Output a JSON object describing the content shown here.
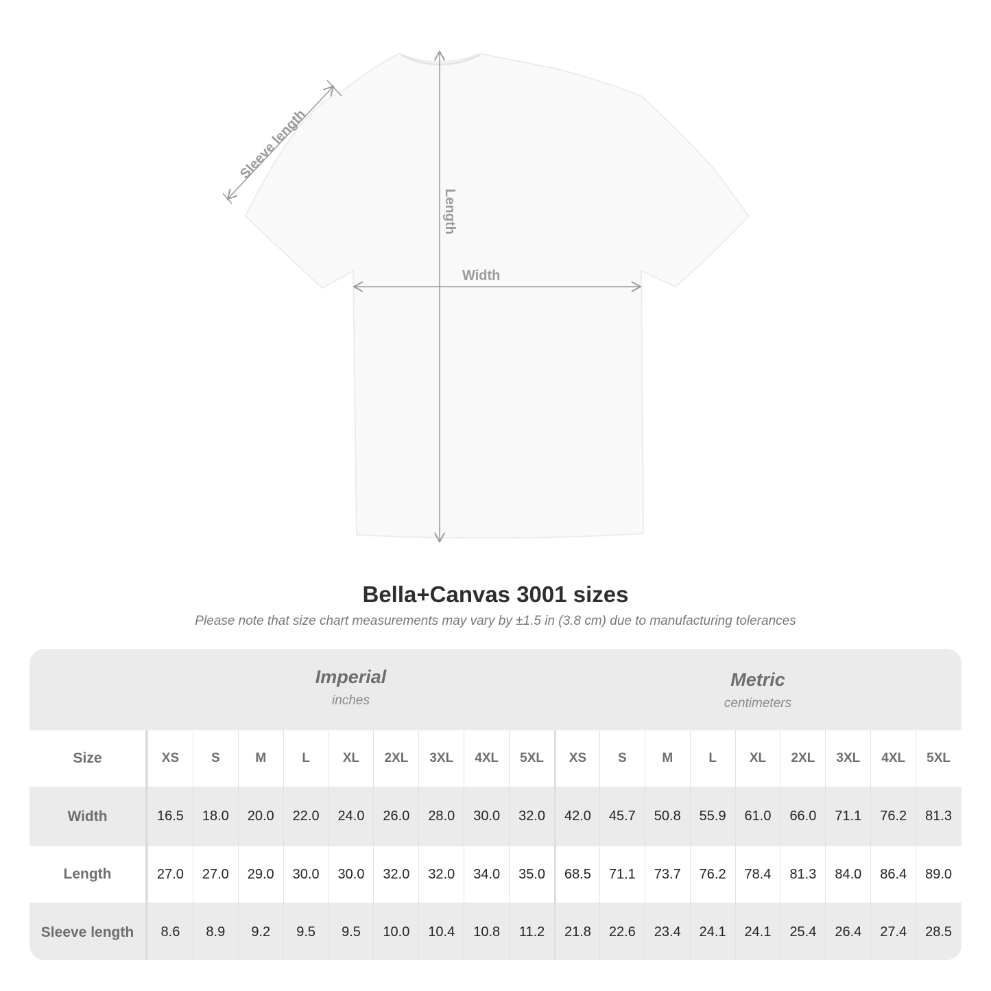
{
  "annotations": {
    "sleeve": "Sleeve length",
    "length": "Length",
    "width": "Width"
  },
  "title": "Bella+Canvas 3001 sizes",
  "subtitle": "Please note that size chart measurements may vary by ±1.5 in (3.8 cm) due to manufacturing tolerances",
  "imperial": {
    "name": "Imperial",
    "unit": "inches"
  },
  "metric": {
    "name": "Metric",
    "unit": "centimeters"
  },
  "size_label": "Size",
  "sizes": [
    "XS",
    "S",
    "M",
    "L",
    "XL",
    "2XL",
    "3XL",
    "4XL",
    "5XL"
  ],
  "rows": [
    {
      "label": "Width",
      "imperial": [
        "16.5",
        "18.0",
        "20.0",
        "22.0",
        "24.0",
        "26.0",
        "28.0",
        "30.0",
        "32.0"
      ],
      "metric": [
        "42.0",
        "45.7",
        "50.8",
        "55.9",
        "61.0",
        "66.0",
        "71.1",
        "76.2",
        "81.3"
      ]
    },
    {
      "label": "Length",
      "imperial": [
        "27.0",
        "27.0",
        "29.0",
        "30.0",
        "30.0",
        "32.0",
        "32.0",
        "34.0",
        "35.0"
      ],
      "metric": [
        "68.5",
        "71.1",
        "73.7",
        "76.2",
        "78.4",
        "81.3",
        "84.0",
        "86.4",
        "89.0"
      ]
    },
    {
      "label": "Sleeve length",
      "imperial": [
        "8.6",
        "8.9",
        "9.2",
        "9.5",
        "9.5",
        "10.0",
        "10.4",
        "10.8",
        "11.2"
      ],
      "metric": [
        "21.8",
        "22.6",
        "23.4",
        "24.1",
        "24.1",
        "25.4",
        "26.4",
        "27.4",
        "28.5"
      ]
    }
  ],
  "colors": {
    "table_bg": "#ebebeb",
    "header_text": "#6b6f72",
    "annotation": "#9a9a9a"
  }
}
